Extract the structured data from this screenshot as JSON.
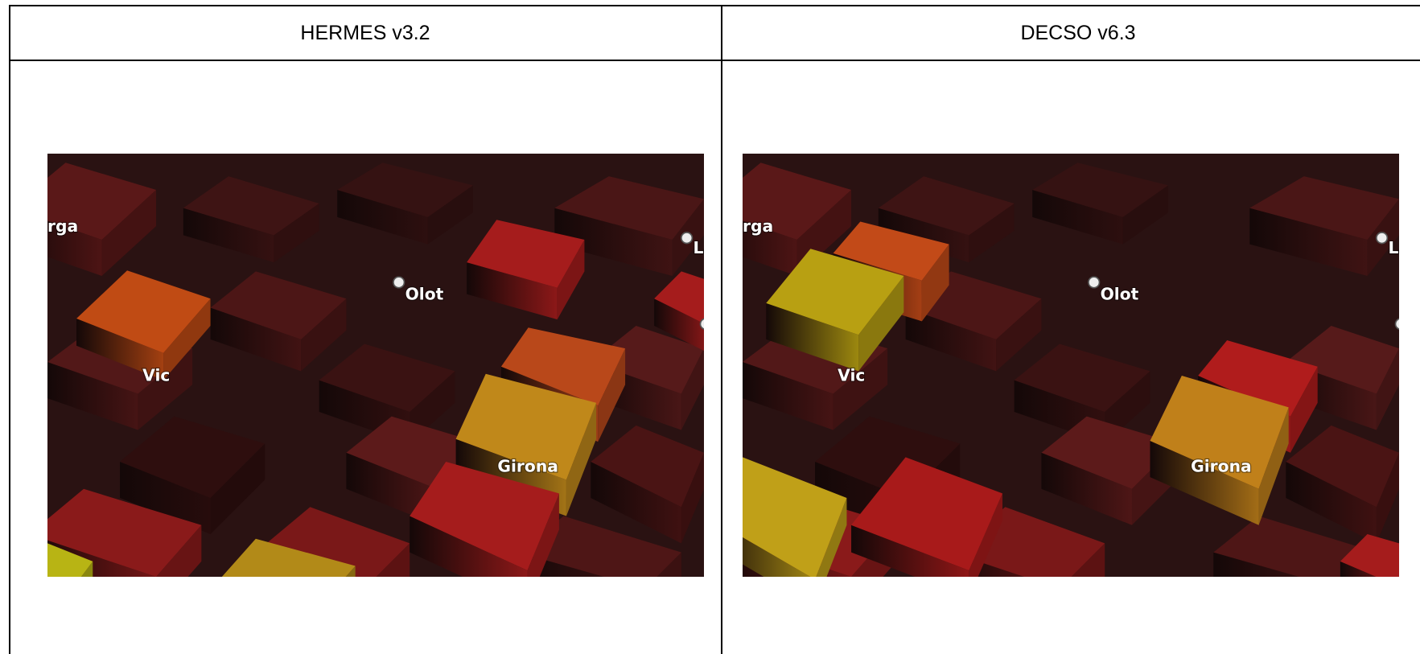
{
  "table": {
    "headers": [
      "HERMES v3.2",
      "DECSO v6.3"
    ]
  },
  "panels": [
    {
      "labels": {
        "town_1": "rga",
        "town_2": "Olot",
        "town_3": "Vic",
        "town_4": "Girona",
        "town_5": "La"
      }
    },
    {
      "labels": {
        "town_1": "rga",
        "town_2": "Olot",
        "town_3": "Vic",
        "town_4": "Girona",
        "town_5": "La"
      }
    }
  ]
}
